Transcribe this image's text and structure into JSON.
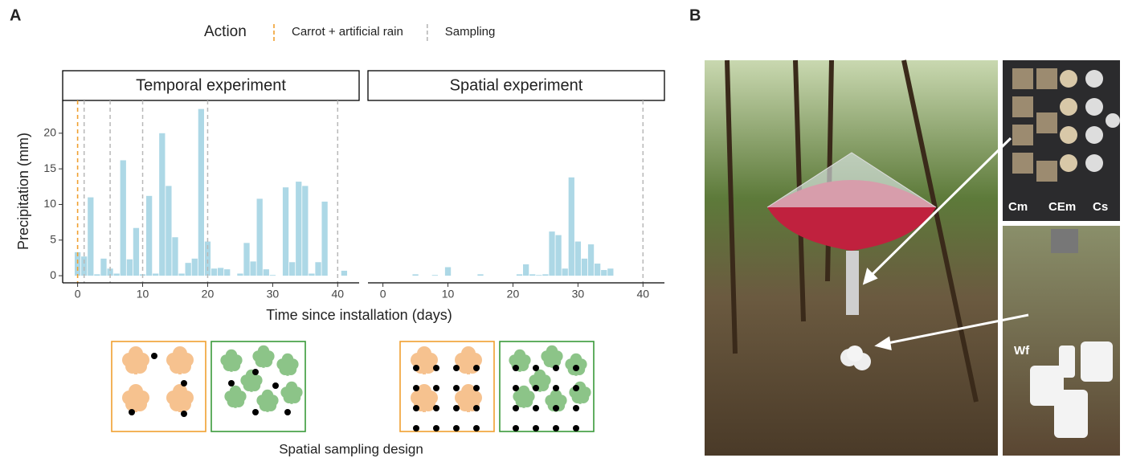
{
  "panel_labels": [
    "A",
    "B"
  ],
  "legend": {
    "title": "Action",
    "entries": [
      {
        "name": "Carrot + artificial rain",
        "color": "#f0a030"
      },
      {
        "name": "Sampling",
        "color": "#b8b8b8"
      }
    ]
  },
  "shared_xlabel": "Time since installation (days)",
  "design_label": "Spatial sampling design",
  "photo_labels": [
    "Cm",
    "CEm",
    "Cs",
    "Wf"
  ],
  "chart_data": [
    {
      "type": "bar",
      "title": "Temporal experiment",
      "ylabel": "Precipitation (mm)",
      "color": "#add8e6",
      "x": [
        0,
        1,
        2,
        3,
        4,
        5,
        6,
        7,
        8,
        9,
        10,
        11,
        12,
        13,
        14,
        15,
        16,
        17,
        18,
        19,
        20,
        21,
        22,
        23,
        25,
        26,
        27,
        28,
        29,
        30,
        32,
        33,
        34,
        35,
        36,
        37,
        38,
        41
      ],
      "values": [
        3.3,
        2.7,
        11.0,
        0.2,
        2.4,
        1.0,
        0.3,
        16.2,
        2.3,
        6.7,
        0.2,
        11.2,
        0.3,
        20.0,
        12.6,
        5.4,
        0.3,
        1.8,
        2.4,
        23.4,
        4.8,
        1.0,
        1.1,
        0.9,
        0.3,
        4.6,
        2.0,
        10.8,
        0.9,
        0.1,
        12.4,
        1.9,
        13.2,
        12.6,
        0.3,
        1.9,
        10.4,
        0.7
      ],
      "carrot_rain_days": [
        0
      ],
      "sampling_days": [
        1,
        5,
        10,
        20,
        40
      ],
      "xlim": [
        -2.3,
        43.3
      ],
      "xticks": [
        0,
        10,
        20,
        30,
        40
      ],
      "ylim": [
        -1.0,
        24.6
      ],
      "yticks": [
        0,
        5,
        10,
        15,
        20
      ]
    },
    {
      "type": "bar",
      "title": "Spatial experiment",
      "color": "#add8e6",
      "x": [
        5,
        8,
        10,
        15,
        21,
        22,
        23,
        24,
        25,
        26,
        27,
        28,
        29,
        30,
        31,
        32,
        33,
        34,
        35
      ],
      "values": [
        0.2,
        0.1,
        1.2,
        0.2,
        0.2,
        1.6,
        0.2,
        0.1,
        0.2,
        6.2,
        5.7,
        1.0,
        13.8,
        4.8,
        2.4,
        4.4,
        1.7,
        0.8,
        1.0
      ],
      "sampling_days": [
        40
      ],
      "xlim": [
        -2.3,
        43.3
      ],
      "xticks": [
        0,
        10,
        20,
        30,
        40
      ],
      "ylim": [
        -1.0,
        24.6
      ]
    }
  ]
}
